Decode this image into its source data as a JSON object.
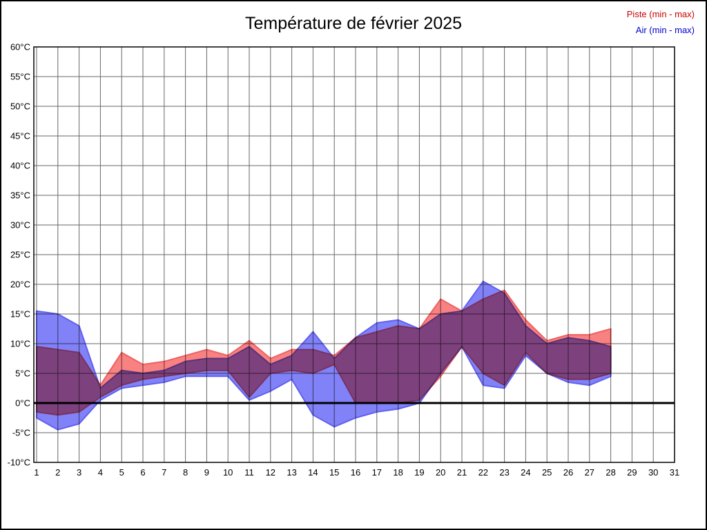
{
  "page": {
    "background": "#ffffff",
    "border_color": "#000000",
    "grid_color": "#666666",
    "zero_line_color": "#000000"
  },
  "chart_data": {
    "type": "area",
    "title": "Température de février 2025",
    "xlabel": "",
    "ylabel": "",
    "xlim": [
      1,
      31
    ],
    "ylim": [
      -10,
      60
    ],
    "x_ticks": [
      1,
      2,
      3,
      4,
      5,
      6,
      7,
      8,
      9,
      10,
      11,
      12,
      13,
      14,
      15,
      16,
      17,
      18,
      19,
      20,
      21,
      22,
      23,
      24,
      25,
      26,
      27,
      28,
      29,
      30,
      31
    ],
    "y_ticks": [
      -10,
      -5,
      0,
      5,
      10,
      15,
      20,
      25,
      30,
      35,
      40,
      45,
      50,
      55,
      60
    ],
    "y_unit": "°C",
    "grid": true,
    "legend_position": "top-right",
    "days": [
      1,
      2,
      3,
      4,
      5,
      6,
      7,
      8,
      9,
      10,
      11,
      12,
      13,
      14,
      15,
      16,
      17,
      18,
      19,
      20,
      21,
      22,
      23,
      24,
      25,
      26,
      27,
      28
    ],
    "series": [
      {
        "name": "Piste (min - max)",
        "legend_color": "#cc0000",
        "fill": "#f88181",
        "edge": "#f06060",
        "min": [
          -1.5,
          -2,
          -1.5,
          1,
          3,
          4,
          4.5,
          5,
          5.5,
          5.5,
          1,
          5,
          5.5,
          5,
          6.5,
          0,
          0,
          0,
          0.5,
          4.5,
          9.5,
          5,
          3,
          8.5,
          5,
          4,
          4,
          5
        ],
        "max": [
          9.5,
          9,
          8.5,
          3,
          8.5,
          6.5,
          7,
          8,
          9,
          8,
          10.5,
          7.5,
          9,
          9,
          8,
          11,
          12,
          13,
          12.5,
          17.5,
          15.5,
          17.5,
          19,
          14,
          10.5,
          11.5,
          11.5,
          12.5
        ]
      },
      {
        "name": "Air (min - max)",
        "legend_color": "#0000cc",
        "fill": "#8181f8",
        "edge": "#6060f0",
        "min": [
          -2.5,
          -4.5,
          -3.5,
          0.5,
          2.5,
          3,
          3.5,
          4.5,
          4.5,
          4.5,
          0.5,
          2,
          4,
          -2,
          -4,
          -2.5,
          -1.5,
          -1,
          0,
          5,
          9.5,
          3,
          2.5,
          8,
          5,
          3.5,
          3,
          4.5
        ],
        "max": [
          15.5,
          15,
          13,
          2.5,
          5.5,
          5,
          5.5,
          7,
          7.5,
          7.5,
          9.5,
          6.5,
          8,
          12,
          7.5,
          11,
          13.5,
          14,
          12.5,
          15,
          15.5,
          20.5,
          18.5,
          13,
          10,
          11,
          10.5,
          9.5
        ]
      }
    ]
  }
}
